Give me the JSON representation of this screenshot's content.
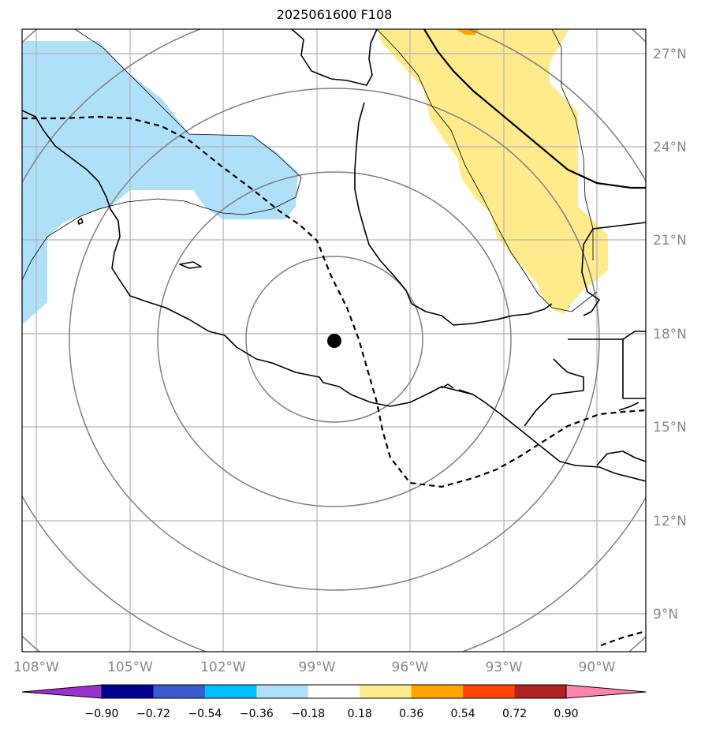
{
  "title": "2025061600 F108",
  "map": {
    "lon_labels": [
      "108°W",
      "105°W",
      "102°W",
      "99°W",
      "96°W",
      "93°W",
      "90°W"
    ],
    "lat_labels": [
      "27°N",
      "24°N",
      "21°N",
      "18°N",
      "15°N",
      "12°N",
      "9°N"
    ],
    "center_marker": "storm-center-dot",
    "colors": {
      "positive_light": "#ffea8c",
      "positive_mid": "#ffa500",
      "negative_light": "#afe0fa",
      "gridline": "#b4b4b4",
      "range_ring": "#808080"
    }
  },
  "colorbar": {
    "levels": [
      "−0.90",
      "−0.72",
      "−0.54",
      "−0.36",
      "−0.18",
      "0.18",
      "0.36",
      "0.54",
      "0.72",
      "0.90"
    ],
    "colors": [
      "#9a32cd",
      "#000090",
      "#3a5bcd",
      "#00bfff",
      "#afe0fa",
      "#ffffff",
      "#ffea8c",
      "#ffa500",
      "#ff4500",
      "#b22222",
      "#ff83aa",
      "#ff83aa"
    ]
  }
}
